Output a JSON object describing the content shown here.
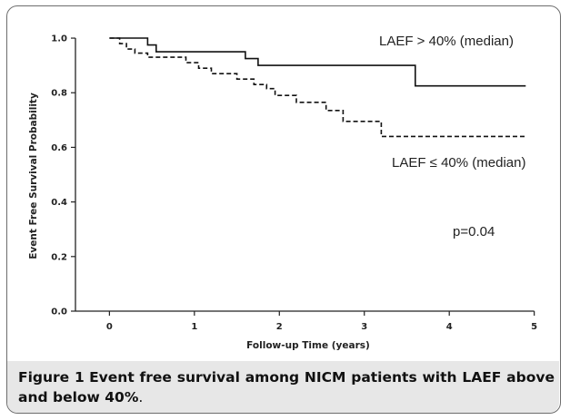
{
  "chart_data": {
    "type": "line",
    "xlabel": "Follow-up Time (years)",
    "ylabel": "Event Free Survival Probability",
    "xlim": [
      -0.4,
      5.1
    ],
    "ylim": [
      0.0,
      1.05
    ],
    "x_ticks": [
      "0",
      "1",
      "2",
      "3",
      "4",
      "5"
    ],
    "y_ticks": [
      "0.0",
      "0.2",
      "0.4",
      "0.6",
      "0.8",
      "1.0"
    ],
    "grid": false,
    "series": [
      {
        "name": "LAEF > 40% (median)",
        "style": "solid",
        "color": "#111111",
        "points": [
          [
            0,
            1.0
          ],
          [
            0.45,
            1.0
          ],
          [
            0.45,
            0.975
          ],
          [
            0.55,
            0.975
          ],
          [
            0.55,
            0.95
          ],
          [
            1.6,
            0.95
          ],
          [
            1.6,
            0.925
          ],
          [
            1.75,
            0.925
          ],
          [
            1.75,
            0.9
          ],
          [
            3.6,
            0.9
          ],
          [
            3.6,
            0.825
          ],
          [
            4.9,
            0.825
          ]
        ]
      },
      {
        "name": "LAEF ≤ 40% (median)",
        "style": "dashed",
        "color": "#111111",
        "points": [
          [
            0,
            1.0
          ],
          [
            0.12,
            1.0
          ],
          [
            0.12,
            0.98
          ],
          [
            0.2,
            0.98
          ],
          [
            0.2,
            0.96
          ],
          [
            0.3,
            0.96
          ],
          [
            0.3,
            0.945
          ],
          [
            0.45,
            0.945
          ],
          [
            0.45,
            0.93
          ],
          [
            0.9,
            0.93
          ],
          [
            0.9,
            0.91
          ],
          [
            1.05,
            0.91
          ],
          [
            1.05,
            0.89
          ],
          [
            1.2,
            0.89
          ],
          [
            1.2,
            0.87
          ],
          [
            1.5,
            0.87
          ],
          [
            1.5,
            0.85
          ],
          [
            1.7,
            0.85
          ],
          [
            1.7,
            0.83
          ],
          [
            1.85,
            0.83
          ],
          [
            1.85,
            0.815
          ],
          [
            1.95,
            0.815
          ],
          [
            1.95,
            0.79
          ],
          [
            2.2,
            0.79
          ],
          [
            2.2,
            0.765
          ],
          [
            2.55,
            0.765
          ],
          [
            2.55,
            0.735
          ],
          [
            2.75,
            0.735
          ],
          [
            2.75,
            0.695
          ],
          [
            3.2,
            0.695
          ],
          [
            3.2,
            0.64
          ],
          [
            4.9,
            0.64
          ]
        ]
      }
    ],
    "annotations": [
      {
        "text": "LAEF > 40% (median)"
      },
      {
        "text": "LAEF ≤ 40% (median)"
      },
      {
        "text": "p=0.04"
      }
    ]
  },
  "caption": {
    "label": "Figure 1",
    "text": "Event free survival among NICM patients with LAEF above and below 40%",
    "end": "."
  }
}
